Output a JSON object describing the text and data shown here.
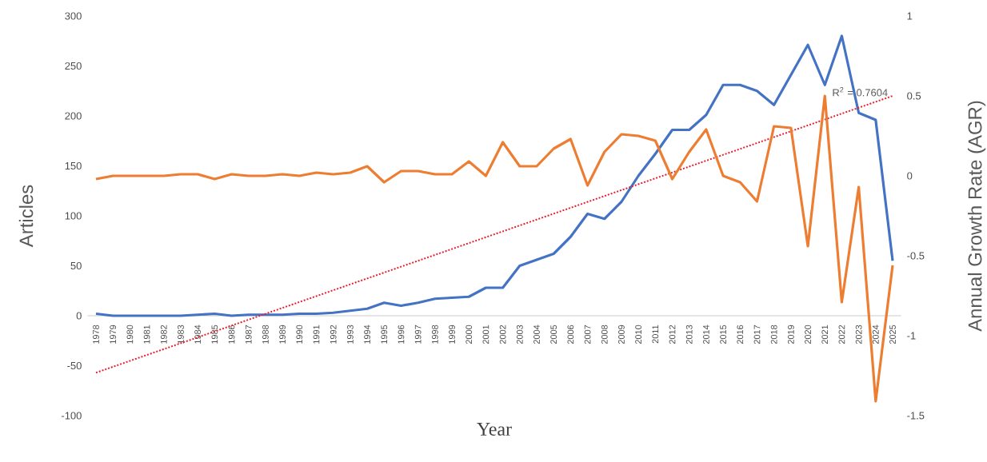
{
  "chart_data": {
    "type": "line",
    "xlabel": "Year",
    "ylabel": "Articles",
    "y2label": "Annual Growth Rate (AGR)",
    "categories": [
      "1978",
      "1979",
      "1980",
      "1981",
      "1982",
      "1983",
      "1984",
      "1985",
      "1986",
      "1987",
      "1988",
      "1989",
      "1990",
      "1991",
      "1992",
      "1993",
      "1994",
      "1995",
      "1996",
      "1997",
      "1998",
      "1999",
      "2000",
      "2001",
      "2002",
      "2003",
      "2004",
      "2005",
      "2006",
      "2007",
      "2008",
      "2009",
      "2010",
      "2011",
      "2012",
      "2013",
      "2014",
      "2015",
      "2016",
      "2017",
      "2018",
      "2019",
      "2020",
      "2021",
      "2022",
      "2023",
      "2024",
      "2025"
    ],
    "series": [
      {
        "color": "#4472c4",
        "values": [
          2,
          0,
          0,
          0,
          0,
          0,
          1,
          2,
          0,
          1,
          1,
          1,
          2,
          2,
          3,
          5,
          7,
          13,
          10,
          13,
          17,
          18,
          19,
          28,
          28,
          50,
          56,
          62,
          79,
          102,
          97,
          114,
          140,
          162,
          186,
          186,
          201,
          231,
          231,
          225,
          211,
          241,
          271,
          231,
          280,
          203,
          196,
          55
        ]
      },
      {
        "color": "#ed7d31",
        "axis": "y2",
        "values": [
          -0.02,
          0,
          0,
          0,
          0,
          0.01,
          0.01,
          -0.02,
          0.01,
          0,
          0,
          0.01,
          0,
          0.02,
          0.01,
          0.02,
          0.06,
          -0.04,
          0.03,
          0.03,
          0.01,
          0.01,
          0.09,
          0,
          0.21,
          0.06,
          0.06,
          0.17,
          0.23,
          -0.06,
          0.15,
          0.26,
          0.25,
          0.22,
          -0.02,
          0.15,
          0.29,
          0,
          -0.04,
          -0.16,
          0.31,
          0.3,
          -0.44,
          0.5,
          -0.79,
          -0.07,
          -1.41,
          -0.56
        ]
      },
      {
        "type": "line",
        "color": "#e8212f",
        "line_style": "dotted",
        "values": [
          -57,
          null,
          null,
          null,
          null,
          null,
          null,
          null,
          null,
          null,
          null,
          null,
          null,
          null,
          null,
          null,
          null,
          null,
          null,
          null,
          null,
          null,
          null,
          null,
          null,
          null,
          null,
          null,
          null,
          null,
          null,
          null,
          null,
          null,
          null,
          null,
          null,
          null,
          null,
          null,
          null,
          null,
          null,
          null,
          null,
          null,
          null,
          220
        ]
      }
    ],
    "ylim": [
      -100,
      300
    ],
    "yticks": [
      -100,
      -50,
      0,
      50,
      100,
      150,
      200,
      250,
      300
    ],
    "y2lim": [
      -1.5,
      1
    ],
    "y2ticks": [
      -1.5,
      -1,
      -0.5,
      0,
      0.5,
      1
    ],
    "annotations": [
      "R$^{2}$ = 0.7604"
    ],
    "marker": "none",
    "line_style": "solid"
  }
}
